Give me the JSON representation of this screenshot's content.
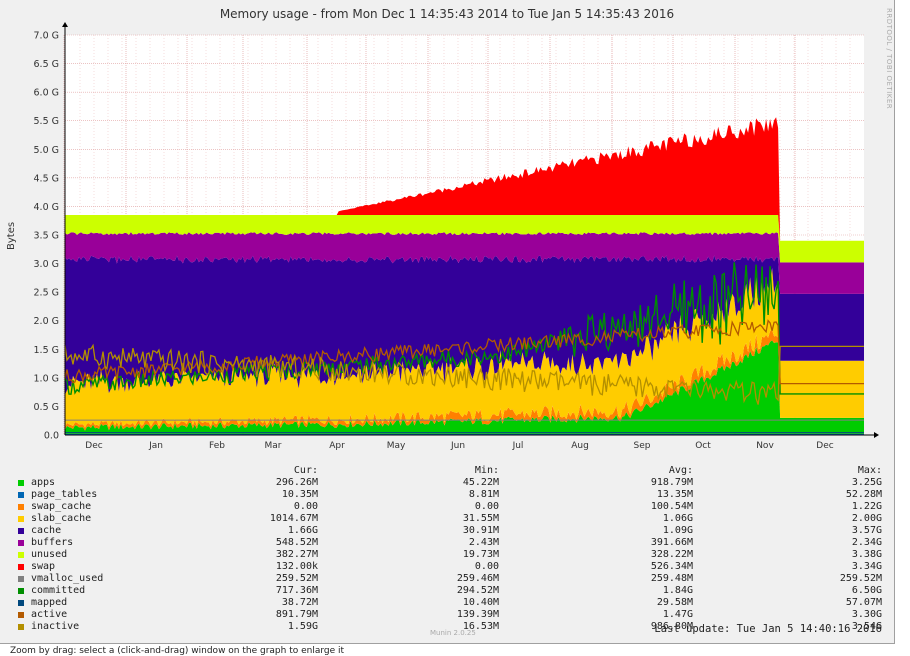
{
  "chart_data": {
    "type": "area",
    "title": "Memory usage - from Mon Dec  1 14:35:43 2014 to Tue Jan  5 14:35:43 2016",
    "ylabel": "Bytes",
    "xlabel": "",
    "watermark": "RRDTOOL / TOBI OETIKER",
    "ylim": [
      0,
      7.0
    ],
    "yticks": [
      "0.0",
      "0.5 G",
      "1.0 G",
      "1.5 G",
      "2.0 G",
      "2.5 G",
      "3.0 G",
      "3.5 G",
      "4.0 G",
      "4.5 G",
      "5.0 G",
      "5.5 G",
      "6.0 G",
      "6.5 G",
      "7.0 G"
    ],
    "xticks": [
      "Dec",
      "Jan",
      "Feb",
      "Mar",
      "Apr",
      "May",
      "Jun",
      "Jul",
      "Aug",
      "Sep",
      "Oct",
      "Nov",
      "Dec"
    ],
    "grid": true,
    "series": [
      {
        "name": "apps",
        "color": "#00cc00",
        "cur": "296.26M",
        "min": "45.22M",
        "avg": "918.79M",
        "max": "3.25G"
      },
      {
        "name": "page_tables",
        "color": "#0066b3",
        "cur": "10.35M",
        "min": "8.81M",
        "avg": "13.35M",
        "max": "52.28M"
      },
      {
        "name": "swap_cache",
        "color": "#ff8000",
        "cur": "0.00",
        "min": "0.00",
        "avg": "100.54M",
        "max": "1.22G"
      },
      {
        "name": "slab_cache",
        "color": "#ffcc00",
        "cur": "1014.67M",
        "min": "31.55M",
        "avg": "1.06G",
        "max": "2.00G"
      },
      {
        "name": "cache",
        "color": "#330099",
        "cur": "1.66G",
        "min": "30.91M",
        "avg": "1.09G",
        "max": "3.57G"
      },
      {
        "name": "buffers",
        "color": "#990099",
        "cur": "548.52M",
        "min": "2.43M",
        "avg": "391.66M",
        "max": "2.34G"
      },
      {
        "name": "unused",
        "color": "#ccff00",
        "cur": "382.27M",
        "min": "19.73M",
        "avg": "328.22M",
        "max": "3.38G"
      },
      {
        "name": "swap",
        "color": "#ff0000",
        "cur": "132.00k",
        "min": "0.00",
        "avg": "526.34M",
        "max": "3.34G"
      },
      {
        "name": "vmalloc_used",
        "color": "#808080",
        "cur": "259.52M",
        "min": "259.46M",
        "avg": "259.48M",
        "max": "259.52M"
      },
      {
        "name": "committed",
        "color": "#008f00",
        "cur": "717.36M",
        "min": "294.52M",
        "avg": "1.84G",
        "max": "6.50G"
      },
      {
        "name": "mapped",
        "color": "#00487d",
        "cur": "38.72M",
        "min": "10.40M",
        "avg": "29.58M",
        "max": "57.07M"
      },
      {
        "name": "active",
        "color": "#b35a00",
        "cur": "891.79M",
        "min": "139.39M",
        "avg": "1.47G",
        "max": "3.30G"
      },
      {
        "name": "inactive",
        "color": "#b38f00",
        "cur": "1.59G",
        "min": "16.53M",
        "avg": "986.80M",
        "max": "3.54G"
      }
    ],
    "legend_headers": [
      "Cur:",
      "Min:",
      "Avg:",
      "Max:"
    ],
    "last_update": "Last update: Tue Jan  5 14:40:16 2016",
    "munin_version": "Munin 2.0.25"
  },
  "footer_text": "Zoom by drag: select a (click-and-drag) window on the graph to enlarge it"
}
